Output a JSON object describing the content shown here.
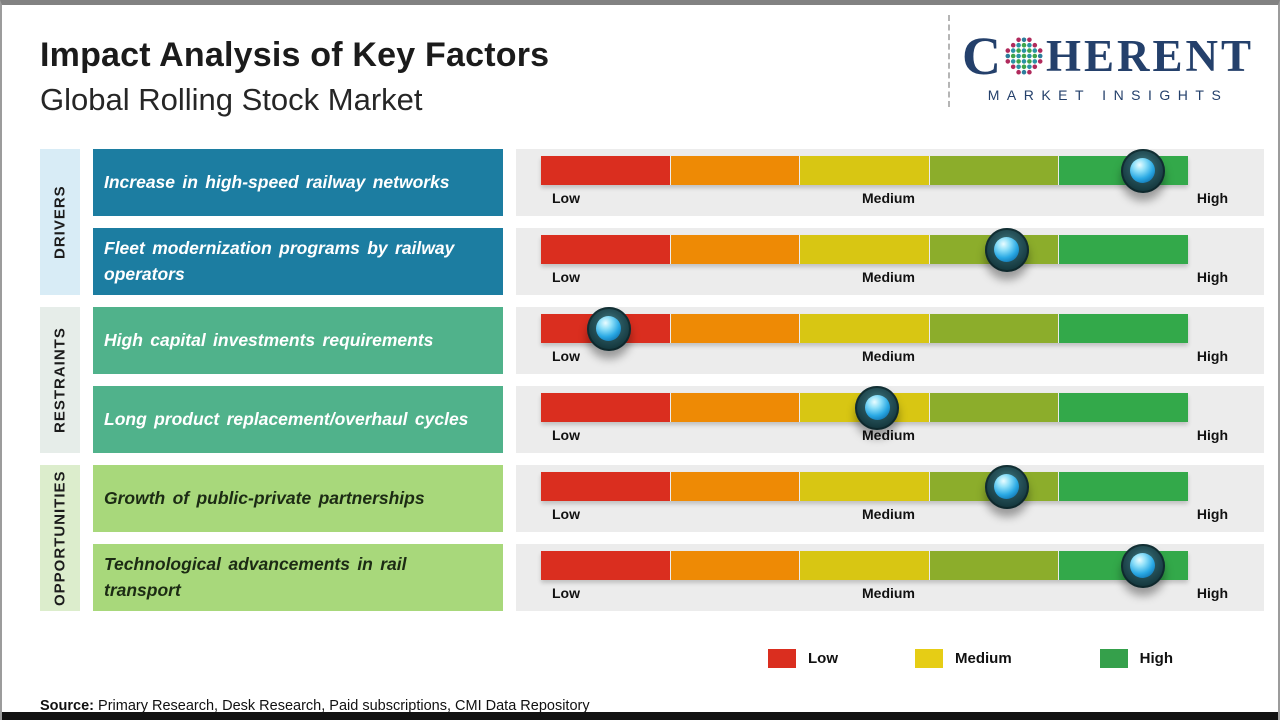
{
  "page": {
    "title": "Impact Analysis of Key Factors",
    "subtitle": "Global Rolling Stock Market",
    "source_label": "Source:",
    "source_text": " Primary Research, Desk Research, Paid subscriptions, CMI Data Repository"
  },
  "logo": {
    "brand_c": "C",
    "brand_rest": "HERENT",
    "brand_sub": "MARKET INSIGHTS"
  },
  "scale_labels": {
    "low": "Low",
    "medium": "Medium",
    "high": "High"
  },
  "legend": [
    {
      "label": "Low",
      "color": "#da2e1f"
    },
    {
      "label": "Medium",
      "color": "#e6cd15"
    },
    {
      "label": "High",
      "color": "#35a04b"
    }
  ],
  "colors": {
    "segments": [
      "#da2e1f",
      "#ee8a05",
      "#d8c613",
      "#8cad2b",
      "#33a94a"
    ],
    "gauge_panel_bg": "#ececec",
    "globe": {
      "ring_a": "#b02a5c",
      "ring_b": "#2d7d9b",
      "inner_a": "#3fa449",
      "inner_b": "#2b93a5"
    },
    "brand_navy": "#24406b"
  },
  "groups": [
    {
      "label": "DRIVERS",
      "label_bg": "#d8ecf6",
      "factor_bg": "#1c7da1",
      "factor_color": "#ffffff",
      "factors": [
        {
          "text": "Increase in high-speed railway networks",
          "impact_pct": 93,
          "impact": "High"
        },
        {
          "text": "Fleet modernization programs by railway operators",
          "impact_pct": 72,
          "impact": "Medium-High"
        }
      ]
    },
    {
      "label": "RESTRAINTS",
      "label_bg": "#e6ede9",
      "factor_bg": "#50b28b",
      "factor_color": "#ffffff",
      "factors": [
        {
          "text": "High capital investments requirements",
          "impact_pct": 10.5,
          "impact": "Low"
        },
        {
          "text": "Long product replacement/overhaul cycles",
          "impact_pct": 52,
          "impact": "Medium"
        }
      ]
    },
    {
      "label": "OPPORTUNITIES",
      "label_bg": "#dcedcc",
      "factor_bg": "#a8d87b",
      "factor_color": "#1c2b14",
      "factors": [
        {
          "text": "Growth of public-private partnerships",
          "impact_pct": 72,
          "impact": "Medium-High"
        },
        {
          "text": "Technological advancements in rail transport",
          "impact_pct": 93,
          "impact": "High"
        }
      ]
    }
  ],
  "chart_data": {
    "type": "gauge",
    "title": "Impact Analysis of Key Factors",
    "subtitle": "Global Rolling Stock Market",
    "scale": [
      "Low",
      "Medium",
      "High"
    ],
    "scale_range": [
      0,
      100
    ],
    "segment_colors": [
      "#da2e1f",
      "#ee8a05",
      "#d8c613",
      "#8cad2b",
      "#33a94a"
    ],
    "legend_position": "bottom",
    "factors": [
      {
        "group": "DRIVERS",
        "text": "Increase in high-speed railway networks",
        "impact_pct": 93,
        "impact_level": "High"
      },
      {
        "group": "DRIVERS",
        "text": "Fleet modernization programs by railway operators",
        "impact_pct": 72,
        "impact_level": "Medium-High"
      },
      {
        "group": "RESTRAINTS",
        "text": "High capital investments requirements",
        "impact_pct": 10.5,
        "impact_level": "Low"
      },
      {
        "group": "RESTRAINTS",
        "text": "Long product replacement/overhaul cycles",
        "impact_pct": 52,
        "impact_level": "Medium"
      },
      {
        "group": "OPPORTUNITIES",
        "text": "Growth of public-private partnerships",
        "impact_pct": 72,
        "impact_level": "Medium-High"
      },
      {
        "group": "OPPORTUNITIES",
        "text": "Technological advancements in rail transport",
        "impact_pct": 93,
        "impact_level": "High"
      }
    ]
  }
}
